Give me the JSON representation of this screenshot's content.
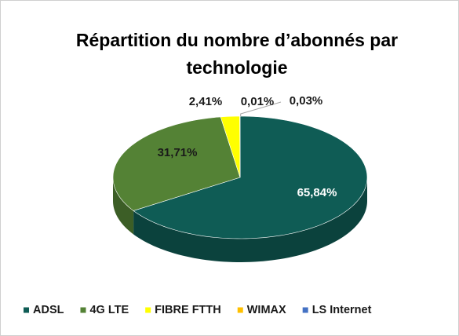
{
  "chart_data": {
    "type": "pie3d",
    "title": "Répartition du nombre d’abonnés par technologie",
    "categories": [
      "ADSL",
      "4G LTE",
      "FIBRE FTTH",
      "WIMAX",
      "LS Internet"
    ],
    "values": [
      65.84,
      31.71,
      2.41,
      0.01,
      0.03
    ],
    "value_labels": [
      "65,84%",
      "31,71%",
      "2,41%",
      "0,01%",
      "0,03%"
    ],
    "colors": [
      "#0f5c55",
      "#548235",
      "#ffff00",
      "#ffc000",
      "#4472c4"
    ],
    "legend": "bottom"
  }
}
